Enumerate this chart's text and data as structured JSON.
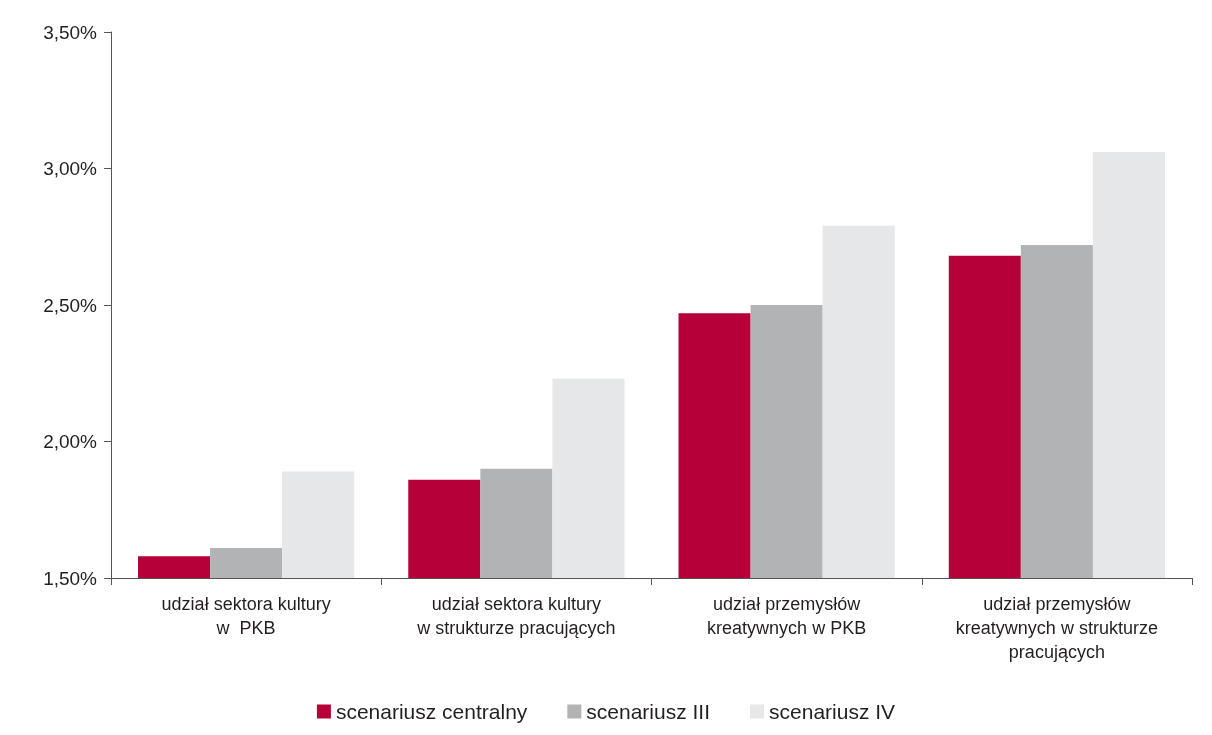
{
  "chart_data": {
    "type": "bar",
    "categories": [
      "udział sektora kultury\nw  PKB",
      "udział sektora kultury\nw strukturze pracujących",
      "udział przemysłów\nkreatywnych w PKB",
      "udział przemysłów\nkreatywnych w strukturze\npracujących"
    ],
    "series": [
      {
        "name": "scenariusz centralny",
        "color": "#b5003a",
        "values": [
          1.58,
          1.86,
          2.47,
          2.68
        ]
      },
      {
        "name": "scenariusz III",
        "color": "#b2b3b5",
        "values": [
          1.61,
          1.9,
          2.5,
          2.72
        ]
      },
      {
        "name": "scenariusz IV",
        "color": "#e6e7e9",
        "values": [
          1.89,
          2.23,
          2.79,
          3.06
        ]
      }
    ],
    "ylim": [
      1.5,
      3.5
    ],
    "yticks": [
      {
        "value": 1.5,
        "label": "1,50%"
      },
      {
        "value": 2,
        "label": "2,00%"
      },
      {
        "value": 2.5,
        "label": "2,50%"
      },
      {
        "value": 3,
        "label": "3,00%"
      },
      {
        "value": 3.5,
        "label": "3,50%"
      }
    ],
    "grid": false,
    "legend": "bottom"
  }
}
